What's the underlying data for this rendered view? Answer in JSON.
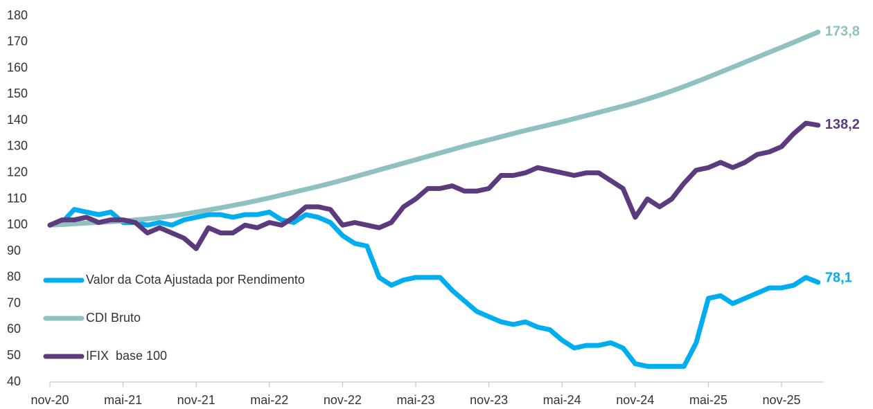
{
  "chart_data": {
    "type": "line",
    "categories": [
      "nov-20",
      null,
      null,
      null,
      null,
      null,
      "mai-21",
      null,
      null,
      null,
      null,
      null,
      "nov-21",
      null,
      null,
      null,
      null,
      null,
      "mai-22",
      null,
      null,
      null,
      null,
      null,
      "nov-22",
      null,
      null,
      null,
      null,
      null,
      "mai-23",
      null,
      null,
      null,
      null,
      null,
      "nov-23",
      null,
      null,
      null,
      null,
      null,
      "mai-24",
      null,
      null,
      null,
      null,
      null,
      "nov-24",
      null,
      null,
      null,
      null,
      null,
      "mai-25",
      null,
      null,
      null,
      null,
      null,
      "nov-25",
      null,
      null,
      null
    ],
    "series": [
      {
        "name": "Valor da Cota Ajustada por Rendimento",
        "color": "#00aeef",
        "values": [
          100,
          101,
          106,
          105,
          104,
          105,
          101,
          101,
          100,
          101,
          100,
          102,
          103,
          104,
          104,
          103,
          104,
          104,
          105,
          102,
          101,
          104,
          103,
          101,
          96,
          93,
          92,
          80,
          77,
          79,
          80,
          80,
          80,
          75,
          71,
          67,
          65,
          63,
          62,
          63,
          61,
          60,
          56,
          53,
          54,
          54,
          55,
          53,
          47,
          46,
          46,
          46,
          46,
          55,
          72,
          73,
          70,
          72,
          74,
          76,
          76,
          77,
          80,
          78.1
        ],
        "value_labels": [
          null,
          null,
          null,
          null,
          null,
          null,
          null,
          null,
          null,
          null,
          null,
          null,
          null,
          null,
          null,
          null,
          null,
          null,
          null,
          null,
          null,
          null,
          null,
          null,
          null,
          null,
          null,
          null,
          null,
          null,
          null,
          null,
          null,
          null,
          null,
          null,
          null,
          null,
          null,
          null,
          null,
          null,
          null,
          null,
          null,
          null,
          null,
          null,
          null,
          null,
          null,
          null,
          null,
          null,
          null,
          null,
          null,
          null,
          null,
          null,
          null,
          null,
          null,
          "78,1"
        ]
      },
      {
        "name": "CDI Bruto",
        "color": "#8fc1c1",
        "values": [
          100,
          100.2,
          100.5,
          100.8,
          101,
          101.3,
          101.6,
          102,
          102.4,
          102.9,
          103.5,
          104.2,
          105,
          105.8,
          106.6,
          107.5,
          108.4,
          109.4,
          110.4,
          111.5,
          112.6,
          113.7,
          114.8,
          116,
          117.2,
          118.5,
          119.8,
          121.1,
          122.4,
          123.7,
          125,
          126.3,
          127.6,
          128.9,
          130.2,
          131.4,
          132.6,
          133.8,
          135,
          136.2,
          137.3,
          138.4,
          139.5,
          140.7,
          141.9,
          143.1,
          144.3,
          145.5,
          146.8,
          148.2,
          149.7,
          151.3,
          153,
          154.8,
          156.6,
          158.5,
          160.4,
          162.3,
          164.2,
          166.1,
          168,
          169.9,
          171.9,
          173.8
        ],
        "value_labels": [
          null,
          null,
          null,
          null,
          null,
          null,
          null,
          null,
          null,
          null,
          null,
          null,
          null,
          null,
          null,
          null,
          null,
          null,
          null,
          null,
          null,
          null,
          null,
          null,
          null,
          null,
          null,
          null,
          null,
          null,
          null,
          null,
          null,
          null,
          null,
          null,
          null,
          null,
          null,
          null,
          null,
          null,
          null,
          null,
          null,
          null,
          null,
          null,
          null,
          null,
          null,
          null,
          null,
          null,
          null,
          null,
          null,
          null,
          null,
          null,
          null,
          null,
          null,
          "173,8"
        ]
      },
      {
        "name": "IFIX  base 100",
        "color": "#5b3a7e",
        "values": [
          100,
          102,
          102,
          103,
          101,
          102,
          102,
          101,
          97,
          99,
          97,
          95,
          91,
          99,
          97,
          97,
          100,
          99,
          101,
          100,
          103,
          107,
          107,
          106,
          100,
          101,
          100,
          99,
          101,
          107,
          110,
          114,
          114,
          115,
          113,
          113,
          114,
          119,
          119,
          120,
          122,
          121,
          120,
          119,
          120,
          120,
          117,
          114,
          103,
          110,
          107,
          110,
          116,
          121,
          122,
          124,
          122,
          124,
          127,
          128,
          130,
          135,
          139,
          138.2
        ],
        "value_labels": [
          null,
          null,
          null,
          null,
          null,
          null,
          null,
          null,
          null,
          null,
          null,
          null,
          null,
          null,
          null,
          null,
          null,
          null,
          null,
          null,
          null,
          null,
          null,
          null,
          null,
          null,
          null,
          null,
          null,
          null,
          null,
          null,
          null,
          null,
          null,
          null,
          null,
          null,
          null,
          null,
          null,
          null,
          null,
          null,
          null,
          null,
          null,
          null,
          null,
          null,
          null,
          null,
          null,
          null,
          null,
          null,
          null,
          null,
          null,
          null,
          null,
          null,
          null,
          "138,2"
        ]
      }
    ],
    "ylim": [
      40,
      180
    ],
    "yticks": [
      40,
      50,
      60,
      70,
      80,
      90,
      100,
      110,
      120,
      130,
      140,
      150,
      160,
      170,
      180
    ]
  }
}
